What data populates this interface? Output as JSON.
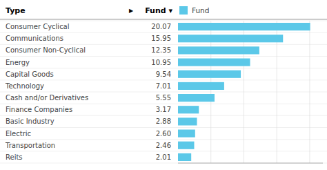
{
  "chart_data": {
    "type": "bar",
    "orientation": "horizontal",
    "y_label": "Type",
    "annotations": [
      "▶",
      "Fund ▾"
    ],
    "categories": [
      "Consumer Cyclical",
      "Communications",
      "Consumer Non-Cyclical",
      "Energy",
      "Capital Goods",
      "Technology",
      "Cash and/or Derivatives",
      "Finance Companies",
      "Basic Industry",
      "Electric",
      "Transportation",
      "Reits"
    ],
    "series": [
      {
        "name": "Fund",
        "color": "#5bc8e8",
        "values": [
          20.07,
          15.95,
          12.35,
          10.95,
          9.54,
          7.01,
          5.55,
          3.17,
          2.88,
          2.6,
          2.46,
          2.01
        ],
        "value_labels": [
          "20.07",
          "15.95",
          "12.35",
          "10.95",
          "9.54",
          "7.01",
          "5.55",
          "3.17",
          "2.88",
          "2.60",
          "2.46",
          "2.01"
        ]
      }
    ],
    "xlim": [
      0,
      22
    ],
    "xticks": [
      5,
      10,
      15,
      20
    ],
    "grid": true,
    "tick_labels": false,
    "data_labels": true,
    "legend": "top"
  }
}
